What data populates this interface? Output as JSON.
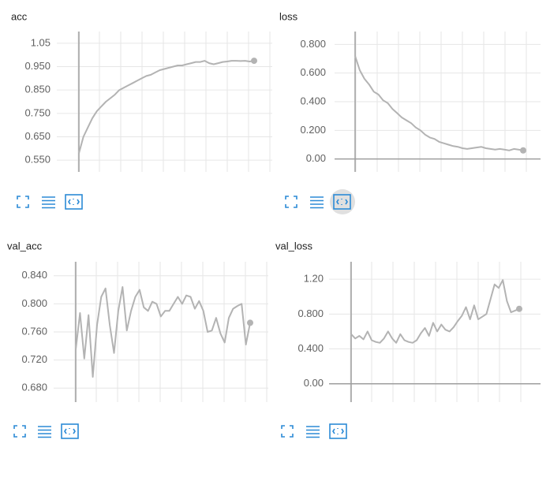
{
  "chart_data": [
    {
      "type": "line",
      "title": "acc",
      "color": "#b3b3b3",
      "grid": true,
      "ylim": [
        0.5,
        1.1
      ],
      "yticks": [
        {
          "value": 0.55,
          "label": "0.550"
        },
        {
          "value": 0.65,
          "label": "0.650"
        },
        {
          "value": 0.75,
          "label": "0.750"
        },
        {
          "value": 0.85,
          "label": "0.850"
        },
        {
          "value": 0.95,
          "label": "0.950"
        },
        1.05
      ],
      "values": [
        0.58,
        0.65,
        0.69,
        0.73,
        0.76,
        0.78,
        0.8,
        0.815,
        0.83,
        0.85,
        0.86,
        0.87,
        0.88,
        0.89,
        0.9,
        0.91,
        0.915,
        0.925,
        0.935,
        0.94,
        0.945,
        0.95,
        0.955,
        0.955,
        0.96,
        0.965,
        0.97,
        0.97,
        0.975,
        0.965,
        0.96,
        0.965,
        0.97,
        0.972,
        0.975,
        0.975,
        0.974,
        0.975,
        0.972,
        0.975
      ]
    },
    {
      "type": "line",
      "title": "loss",
      "color": "#b3b3b3",
      "grid": true,
      "ylim": [
        -0.09,
        0.89
      ],
      "yticks": [
        {
          "value": 0,
          "label": "0.00"
        },
        {
          "value": 0.2,
          "label": "0.200"
        },
        {
          "value": 0.4,
          "label": "0.400"
        },
        {
          "value": 0.6,
          "label": "0.600"
        },
        {
          "value": 0.8,
          "label": "0.800"
        }
      ],
      "values": [
        0.72,
        0.62,
        0.56,
        0.52,
        0.47,
        0.45,
        0.41,
        0.39,
        0.35,
        0.32,
        0.29,
        0.27,
        0.25,
        0.22,
        0.2,
        0.17,
        0.15,
        0.14,
        0.12,
        0.11,
        0.1,
        0.09,
        0.085,
        0.075,
        0.07,
        0.075,
        0.08,
        0.085,
        0.075,
        0.07,
        0.065,
        0.07,
        0.065,
        0.06,
        0.07,
        0.065,
        0.06
      ]
    },
    {
      "type": "line",
      "title": "val_acc",
      "color": "#b3b3b3",
      "grid": true,
      "ylim": [
        0.66,
        0.86
      ],
      "yticks": [
        {
          "value": 0.68,
          "label": "0.680"
        },
        {
          "value": 0.72,
          "label": "0.720"
        },
        {
          "value": 0.76,
          "label": "0.760"
        },
        {
          "value": 0.8,
          "label": "0.800"
        },
        {
          "value": 0.84,
          "label": "0.840"
        }
      ],
      "values": [
        0.735,
        0.787,
        0.722,
        0.784,
        0.696,
        0.77,
        0.81,
        0.822,
        0.77,
        0.73,
        0.79,
        0.824,
        0.762,
        0.79,
        0.81,
        0.82,
        0.795,
        0.79,
        0.803,
        0.8,
        0.782,
        0.79,
        0.79,
        0.8,
        0.81,
        0.8,
        0.812,
        0.81,
        0.793,
        0.804,
        0.79,
        0.76,
        0.762,
        0.78,
        0.758,
        0.745,
        0.78,
        0.793,
        0.797,
        0.8,
        0.742,
        0.773
      ]
    },
    {
      "type": "line",
      "title": "val_loss",
      "color": "#b3b3b3",
      "grid": true,
      "ylim": [
        -0.21,
        1.4
      ],
      "yticks": [
        {
          "value": 0,
          "label": "0.00"
        },
        {
          "value": 0.4,
          "label": "0.400"
        },
        {
          "value": 0.8,
          "label": "0.800"
        },
        {
          "value": 1.2,
          "label": "1.20"
        }
      ],
      "values": [
        0.57,
        0.52,
        0.55,
        0.51,
        0.6,
        0.5,
        0.48,
        0.47,
        0.52,
        0.6,
        0.52,
        0.47,
        0.57,
        0.5,
        0.48,
        0.47,
        0.5,
        0.58,
        0.64,
        0.55,
        0.7,
        0.6,
        0.68,
        0.62,
        0.6,
        0.65,
        0.72,
        0.78,
        0.88,
        0.74,
        0.9,
        0.74,
        0.77,
        0.8,
        0.97,
        1.14,
        1.1,
        1.19,
        0.95,
        0.82,
        0.84,
        0.86
      ]
    }
  ]
}
